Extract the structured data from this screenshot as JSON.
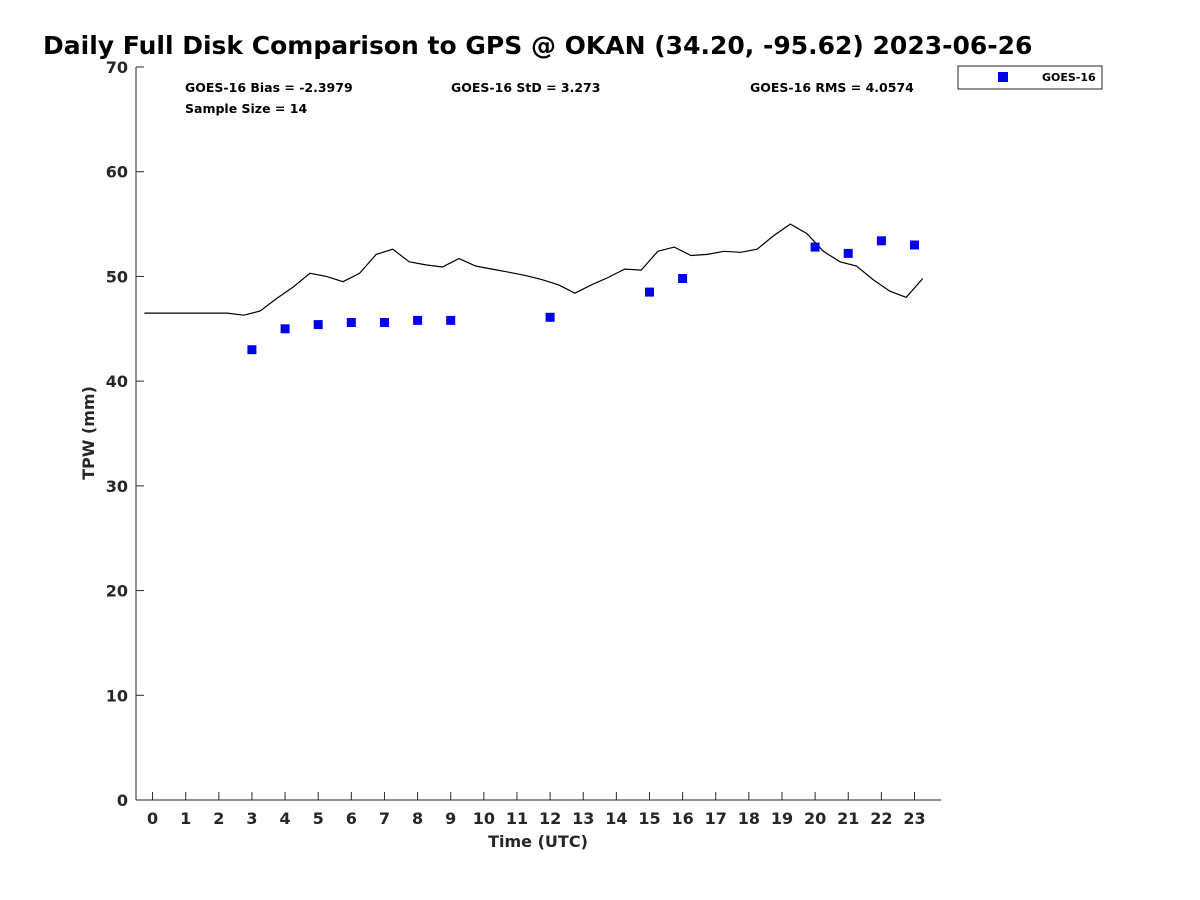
{
  "chart_data": {
    "type": "line",
    "title": "Daily Full Disk Comparison to GPS @ OKAN (34.20, -95.62) 2023-06-26",
    "xlabel": "Time (UTC)",
    "ylabel": "TPW (mm)",
    "xlim": [
      -0.5,
      23.8
    ],
    "ylim": [
      0,
      70
    ],
    "x_ticks": [
      "0",
      "1",
      "2",
      "3",
      "4",
      "5",
      "6",
      "7",
      "8",
      "9",
      "10",
      "11",
      "12",
      "13",
      "14",
      "15",
      "16",
      "17",
      "18",
      "19",
      "20",
      "21",
      "22",
      "23"
    ],
    "y_ticks": [
      "0",
      "10",
      "20",
      "30",
      "40",
      "50",
      "60",
      "70"
    ],
    "grid": false,
    "legend": {
      "position": "outside-top-right",
      "entries": [
        "GOES-16"
      ]
    },
    "stats": {
      "bias": "GOES-16 Bias = -2.3979",
      "std": "GOES-16 StD = 3.273",
      "rms": "GOES-16 RMS = 4.0574",
      "sample": "Sample Size = 14"
    },
    "series": [
      {
        "kind": "line",
        "color": "#000000",
        "x": [
          -0.25,
          0,
          0.5,
          1,
          1.5,
          2,
          2.25,
          2.75,
          3.25,
          3.75,
          4.25,
          4.75,
          5.25,
          5.75,
          6.25,
          6.75,
          7.25,
          7.75,
          8.25,
          8.75,
          9.25,
          9.75,
          10.25,
          10.75,
          11.25,
          11.75,
          12.25,
          12.75,
          13.25,
          13.75,
          14.25,
          14.75,
          15.25,
          15.75,
          16.25,
          16.75,
          17.25,
          17.75,
          18.25,
          18.75,
          19.25,
          19.75,
          20.25,
          20.75,
          21.25,
          21.75,
          22.25,
          22.75,
          23.25
        ],
        "y": [
          46.5,
          46.5,
          46.5,
          46.5,
          46.5,
          46.5,
          46.5,
          46.3,
          46.7,
          47.9,
          49.0,
          50.3,
          50.0,
          49.5,
          50.3,
          52.1,
          52.6,
          51.4,
          51.1,
          50.9,
          51.7,
          51.0,
          50.7,
          50.4,
          50.1,
          49.7,
          49.2,
          48.4,
          49.2,
          49.9,
          50.7,
          50.6,
          52.4,
          52.8,
          52.0,
          52.1,
          52.4,
          52.3,
          52.6,
          53.9,
          55.0,
          54.1,
          52.4,
          51.4,
          51.0,
          49.7,
          48.6,
          48.0,
          49.8
        ]
      },
      {
        "kind": "scatter",
        "name": "GOES-16",
        "color": "#0000ee",
        "x": [
          3,
          4,
          5,
          6,
          7,
          8,
          9,
          12,
          15,
          16,
          20,
          21,
          22,
          23
        ],
        "y": [
          43.0,
          45.0,
          45.4,
          45.6,
          45.6,
          45.8,
          45.8,
          46.1,
          48.5,
          49.8,
          52.8,
          52.2,
          53.4,
          53.0
        ]
      }
    ]
  }
}
